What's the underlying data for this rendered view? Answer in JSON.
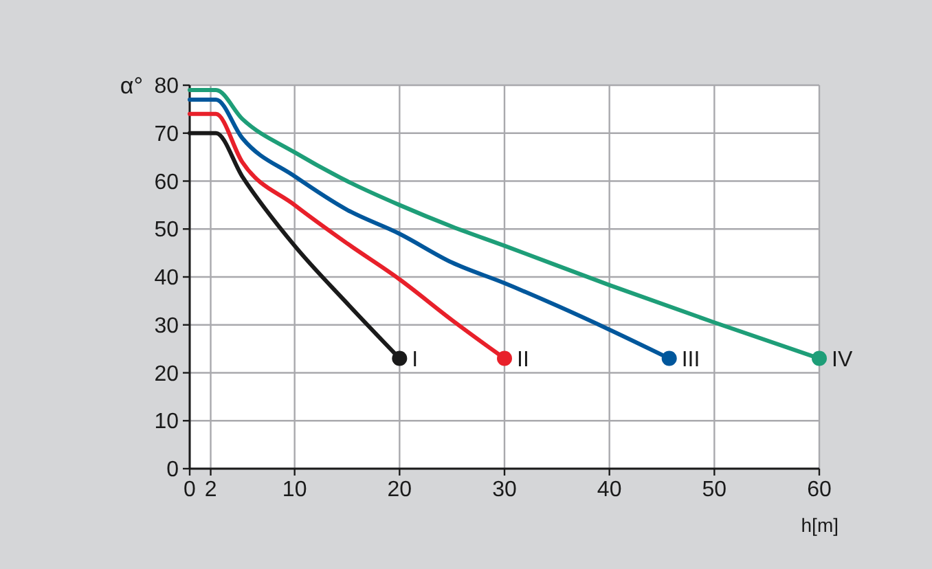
{
  "chart_data": {
    "type": "line",
    "xlabel": "h[m]",
    "ylabel": "α°",
    "xlim": [
      0,
      60
    ],
    "xticks": [
      0,
      2,
      10,
      20,
      30,
      40,
      50,
      60
    ],
    "ylim": [
      0,
      80
    ],
    "yticks": [
      0,
      10,
      20,
      30,
      40,
      50,
      60,
      70,
      80
    ],
    "grid": true,
    "series": [
      {
        "name": "I",
        "color": "#1a1a1a",
        "x": [
          0,
          2.5,
          5,
          10,
          15,
          20
        ],
        "values": [
          70,
          70,
          61,
          46.5,
          34.5,
          23
        ]
      },
      {
        "name": "II",
        "color": "#e8202a",
        "x": [
          0,
          2.5,
          5,
          10,
          15,
          20,
          25,
          30
        ],
        "values": [
          74,
          74,
          64,
          55,
          47,
          39.5,
          31,
          23
        ]
      },
      {
        "name": "III",
        "color": "#00579c",
        "x": [
          0,
          2.5,
          5,
          10,
          15,
          20,
          25,
          30,
          35,
          40,
          45.7
        ],
        "values": [
          77,
          77,
          69,
          61,
          54,
          49,
          43,
          38.7,
          34,
          29,
          23
        ]
      },
      {
        "name": "IV",
        "color": "#1e9e78",
        "x": [
          0,
          2.5,
          5,
          10,
          15,
          20,
          25,
          30,
          40,
          50,
          60
        ],
        "values": [
          79,
          79,
          73,
          66,
          60,
          55,
          50.5,
          46.5,
          38.3,
          30.5,
          23
        ]
      },
      {
        "type": "scatter",
        "colors": [
          "#1a1a1a",
          "#e8202a",
          "#00579c",
          "#1e9e78"
        ],
        "x": [
          20,
          30,
          45.7,
          60
        ],
        "values": [
          23,
          23,
          23,
          23
        ]
      }
    ]
  }
}
